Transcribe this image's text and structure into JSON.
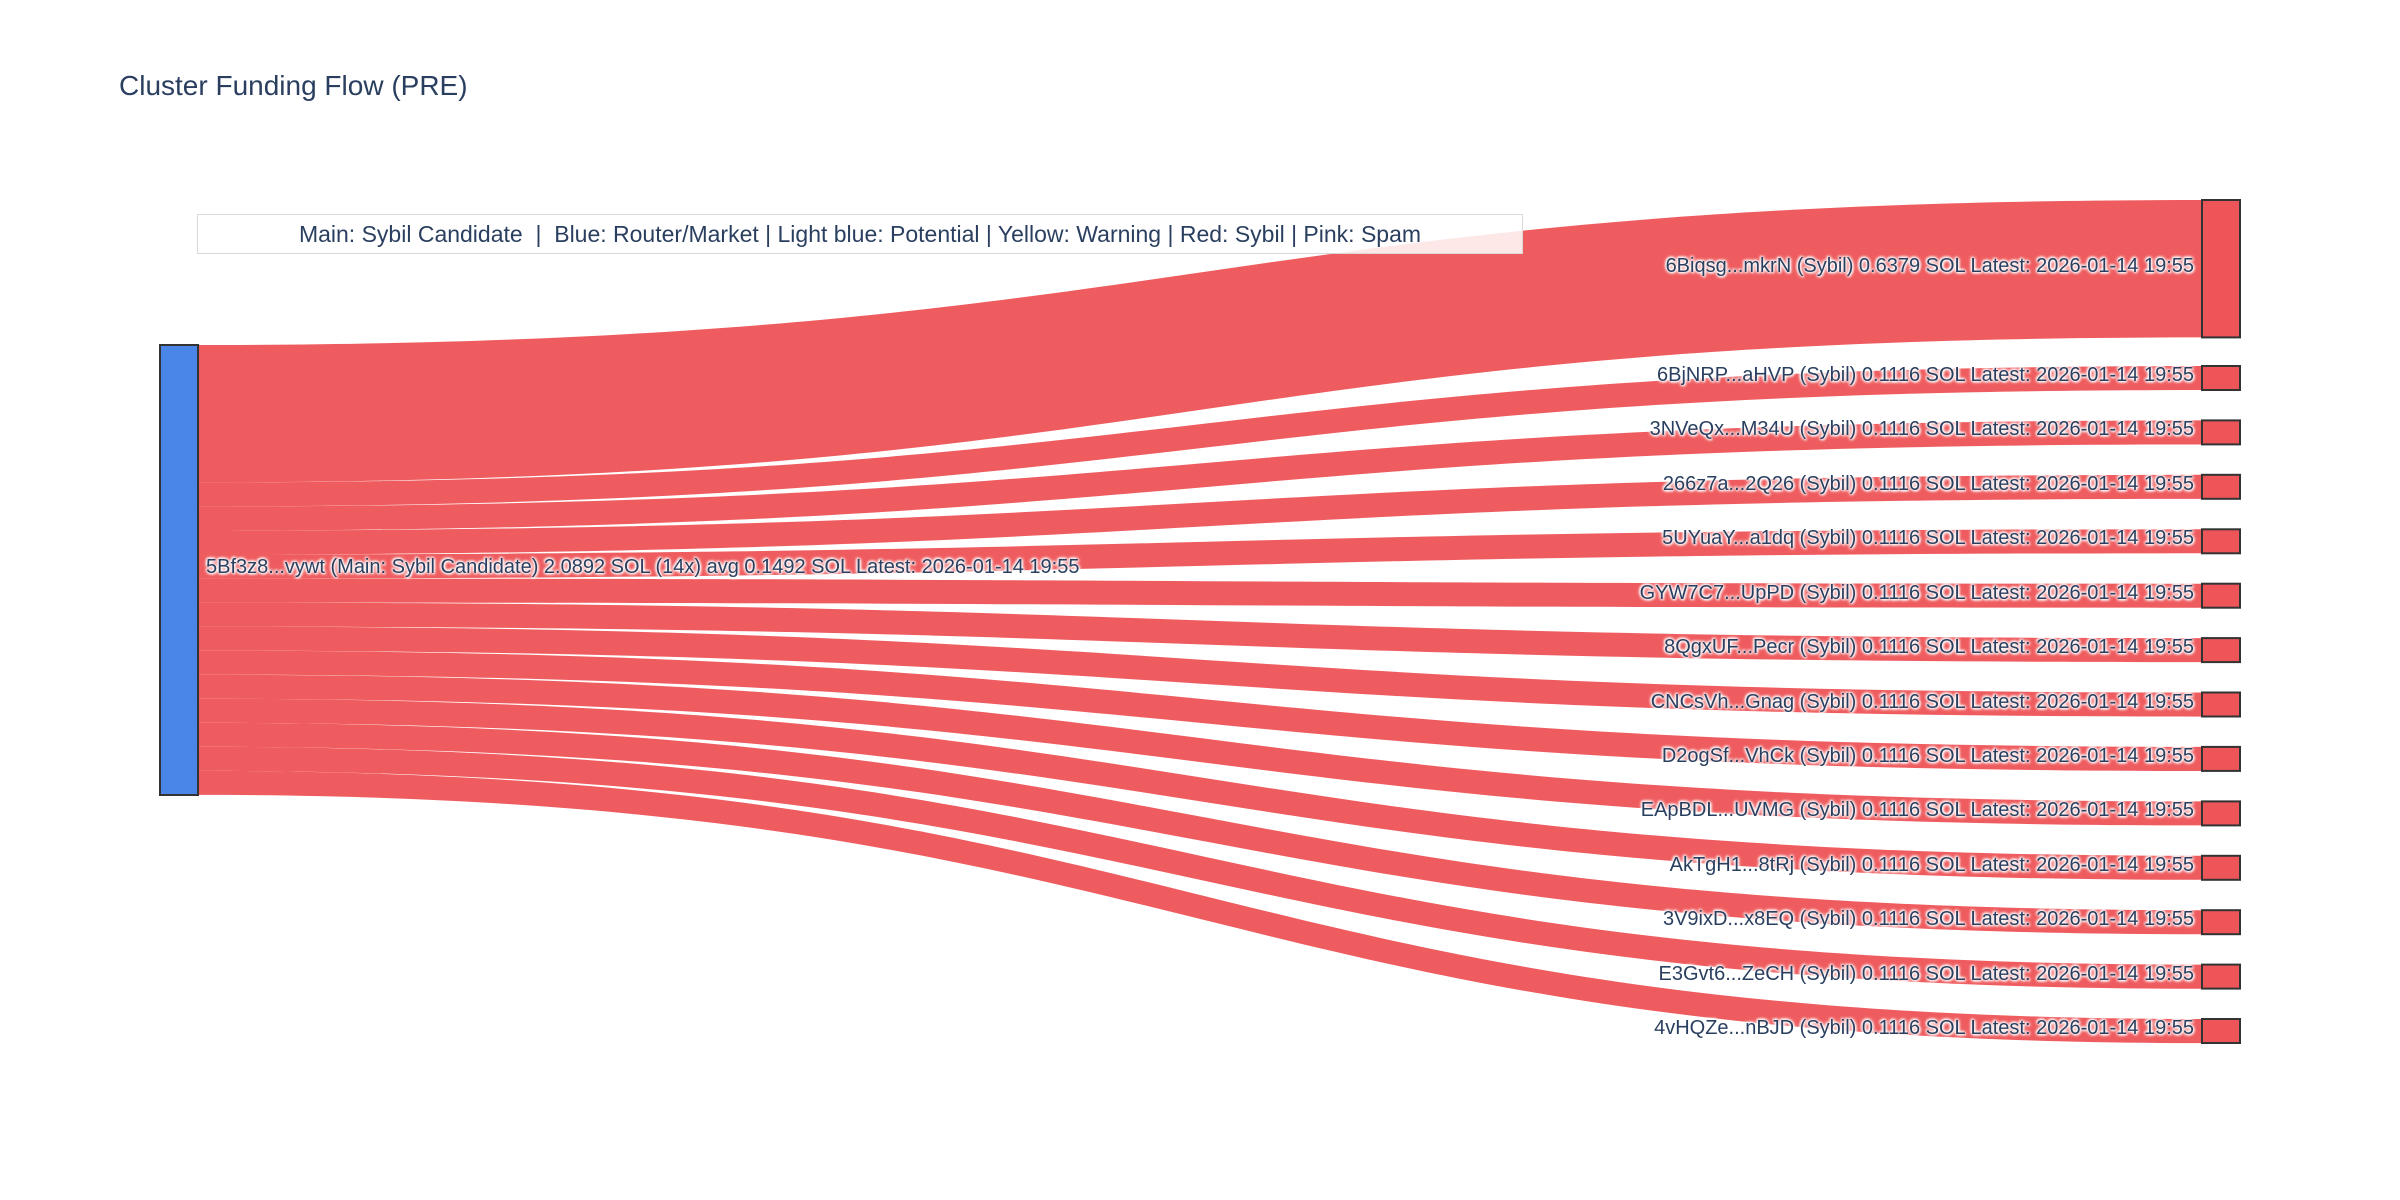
{
  "page": {
    "background": "#ffffff"
  },
  "chart_data": {
    "type": "sankey",
    "title": "Cluster Funding Flow (PRE)",
    "legend_text": "Main: Sybil Candidate  |  Blue: Router/Market | Light blue: Potential | Yellow: Warning | Red: Sybil | Pink: Spam",
    "units": "SOL",
    "source": {
      "id": "5Bf3z8...vywt",
      "role": "Main: Sybil Candidate",
      "label": "5Bf3z8...vywt (Main: Sybil Candidate) 2.0892 SOL (14x) avg 0.1492 SOL Latest: 2026-01-14 19:55",
      "total_sol": 2.0892,
      "tx_count": 14,
      "avg_sol": 0.1492,
      "latest": "2026-01-14 19:55"
    },
    "targets": [
      {
        "id": "6Biqsg...mkrN",
        "role": "Sybil",
        "sol": 0.6379,
        "latest": "2026-01-14 19:55",
        "label": "6Biqsg...mkrN (Sybil) 0.6379 SOL Latest: 2026-01-14 19:55"
      },
      {
        "id": "6BjNRP...aHVP",
        "role": "Sybil",
        "sol": 0.1116,
        "latest": "2026-01-14 19:55",
        "label": "6BjNRP...aHVP (Sybil) 0.1116 SOL Latest: 2026-01-14 19:55"
      },
      {
        "id": "3NVeQx...M34U",
        "role": "Sybil",
        "sol": 0.1116,
        "latest": "2026-01-14 19:55",
        "label": "3NVeQx...M34U (Sybil) 0.1116 SOL Latest: 2026-01-14 19:55"
      },
      {
        "id": "266z7a...2Q26",
        "role": "Sybil",
        "sol": 0.1116,
        "latest": "2026-01-14 19:55",
        "label": "266z7a...2Q26 (Sybil) 0.1116 SOL Latest: 2026-01-14 19:55"
      },
      {
        "id": "5UYuaY...a1dq",
        "role": "Sybil",
        "sol": 0.1116,
        "latest": "2026-01-14 19:55",
        "label": "5UYuaY...a1dq (Sybil) 0.1116 SOL Latest: 2026-01-14 19:55"
      },
      {
        "id": "GYW7C7...UpPD",
        "role": "Sybil",
        "sol": 0.1116,
        "latest": "2026-01-14 19:55",
        "label": "GYW7C7...UpPD (Sybil) 0.1116 SOL Latest: 2026-01-14 19:55"
      },
      {
        "id": "8QgxUF...Pecr",
        "role": "Sybil",
        "sol": 0.1116,
        "latest": "2026-01-14 19:55",
        "label": "8QgxUF...Pecr (Sybil) 0.1116 SOL Latest: 2026-01-14 19:55"
      },
      {
        "id": "CNCsVh...Gnag",
        "role": "Sybil",
        "sol": 0.1116,
        "latest": "2026-01-14 19:55",
        "label": "CNCsVh...Gnag (Sybil) 0.1116 SOL Latest: 2026-01-14 19:55"
      },
      {
        "id": "D2ogSf...VhCk",
        "role": "Sybil",
        "sol": 0.1116,
        "latest": "2026-01-14 19:55",
        "label": "D2ogSf...VhCk (Sybil) 0.1116 SOL Latest: 2026-01-14 19:55"
      },
      {
        "id": "EApBDL...UVMG",
        "role": "Sybil",
        "sol": 0.1116,
        "latest": "2026-01-14 19:55",
        "label": "EApBDL...UVMG (Sybil) 0.1116 SOL Latest: 2026-01-14 19:55"
      },
      {
        "id": "AkTgH1...8tRj",
        "role": "Sybil",
        "sol": 0.1116,
        "latest": "2026-01-14 19:55",
        "label": "AkTgH1...8tRj (Sybil) 0.1116 SOL Latest: 2026-01-14 19:55"
      },
      {
        "id": "3V9ixD...x8EQ",
        "role": "Sybil",
        "sol": 0.1116,
        "latest": "2026-01-14 19:55",
        "label": "3V9ixD...x8EQ (Sybil) 0.1116 SOL Latest: 2026-01-14 19:55"
      },
      {
        "id": "E3Gvt6...ZeCH",
        "role": "Sybil",
        "sol": 0.1116,
        "latest": "2026-01-14 19:55",
        "label": "E3Gvt6...ZeCH (Sybil) 0.1116 SOL Latest: 2026-01-14 19:55"
      },
      {
        "id": "4vHQZe...nBJD",
        "role": "Sybil",
        "sol": 0.1116,
        "latest": "2026-01-14 19:55",
        "label": "4vHQZe...nBJD (Sybil) 0.1116 SOL Latest: 2026-01-14 19:55"
      }
    ],
    "colors": {
      "source_node": "#4a86e8",
      "target_node": "#ee5558",
      "link": "#ee5558",
      "node_border": "#333333",
      "label_text": "#2a3f5f"
    }
  }
}
